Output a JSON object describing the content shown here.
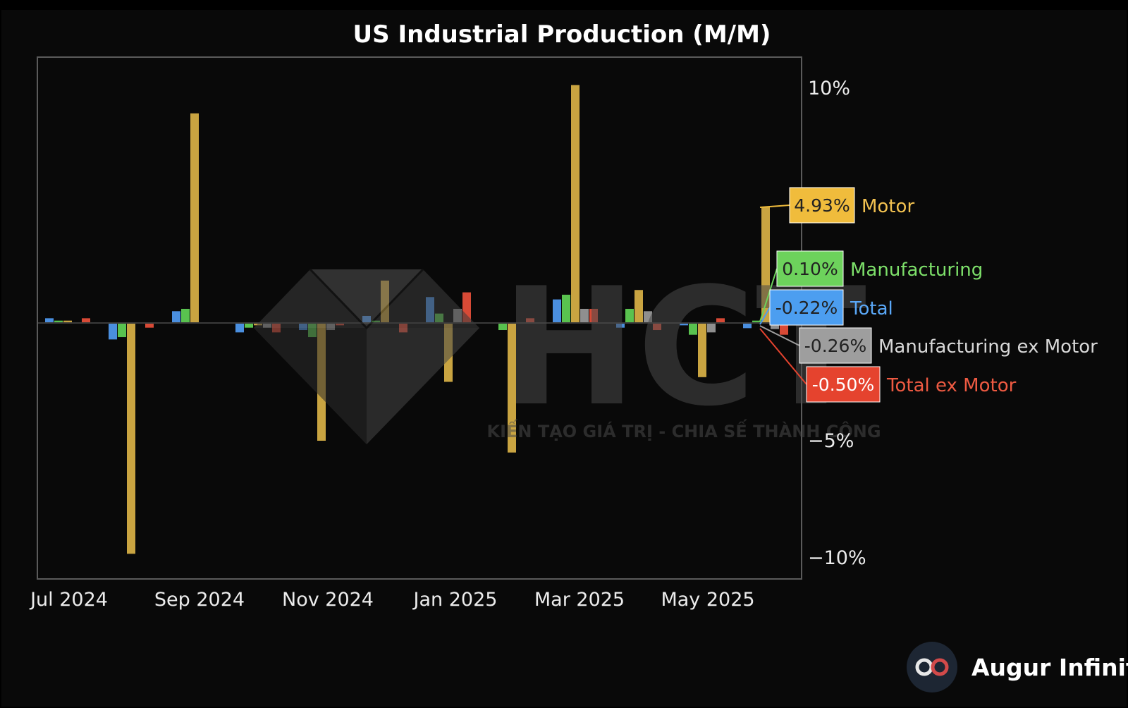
{
  "chart_data": {
    "type": "bar",
    "title": "US Industrial Production (M/M)",
    "x": [
      "2024-07",
      "2024-08",
      "2024-09",
      "2024-10",
      "2024-11",
      "2024-12",
      "2025-01",
      "2025-02",
      "2025-03",
      "2025-04",
      "2025-05",
      "2025-06"
    ],
    "x_ticks": [
      "Jul 2024",
      "Sep 2024",
      "Nov 2024",
      "Jan 2025",
      "Mar 2025",
      "May 2025"
    ],
    "y_ticks": [
      "10%",
      "−5%",
      "−10%"
    ],
    "ylim": [
      -11,
      11
    ],
    "series": [
      {
        "name": "Total",
        "color": "#4a8fe0",
        "values": [
          0.2,
          -0.7,
          0.5,
          -0.4,
          -0.3,
          0.3,
          1.1,
          0.0,
          1.0,
          -0.2,
          -0.1,
          -0.22
        ]
      },
      {
        "name": "Manufacturing",
        "color": "#59c24f",
        "values": [
          0.1,
          -0.6,
          0.6,
          -0.2,
          -0.6,
          0.1,
          0.4,
          -0.3,
          1.2,
          0.6,
          -0.5,
          0.1
        ]
      },
      {
        "name": "Motor",
        "color": "#c9a441",
        "values": [
          0.1,
          -9.8,
          8.9,
          -0.1,
          -5.0,
          1.8,
          -2.5,
          -5.5,
          10.1,
          1.4,
          -2.3,
          4.93
        ]
      },
      {
        "name": "Manufacturing ex Motor",
        "color": "#8f8f8f",
        "values": [
          0.0,
          0.0,
          0.0,
          -0.2,
          -0.3,
          0.0,
          0.6,
          0.0,
          0.6,
          0.5,
          -0.4,
          -0.26
        ]
      },
      {
        "name": "Total ex Motor",
        "color": "#d84a36",
        "values": [
          0.2,
          -0.2,
          0.0,
          -0.4,
          -0.1,
          -0.4,
          1.3,
          0.2,
          0.6,
          -0.3,
          0.2,
          -0.5
        ]
      }
    ],
    "labels": [
      {
        "value": "4.93%",
        "name": "Motor",
        "bg": "#f0bc3c",
        "fg": "#f2c150"
      },
      {
        "value": "0.10%",
        "name": "Manufacturing",
        "bg": "#6dd25c",
        "fg": "#7de06a"
      },
      {
        "value": "-0.22%",
        "name": "Total",
        "bg": "#4c9ef0",
        "fg": "#5aa8f8"
      },
      {
        "value": "-0.26%",
        "name": "Manufacturing ex Motor",
        "bg": "#9e9e9e",
        "fg": "#d8d8d8"
      },
      {
        "value": "-0.50%",
        "name": "Total ex Motor",
        "bg": "#e5432e",
        "fg": "#ee5a42"
      }
    ]
  },
  "watermark": {
    "logo": "HCT",
    "tagline": "KIẾN TẠO GIÁ TRỊ - CHIA SẾ THÀNH CÔNG"
  },
  "branding": {
    "name": "Augur Infinity",
    "icon": "infinity-icon"
  }
}
